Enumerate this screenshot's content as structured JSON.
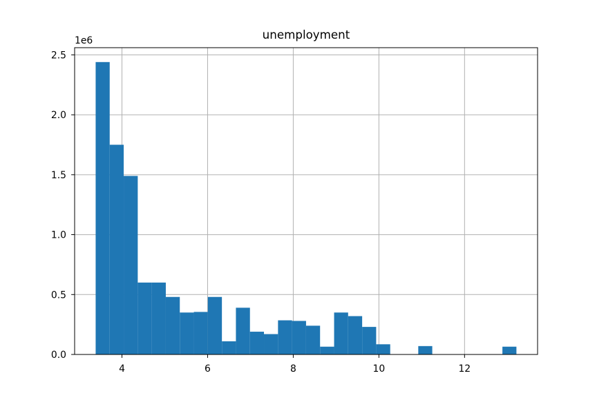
{
  "chart_data": {
    "type": "bar",
    "title": "unemployment",
    "xlabel": "",
    "ylabel": "",
    "offset_label": "1e6",
    "grid": true,
    "bar_color": "#1f77b4",
    "xlim": [
      2.895,
      13.705
    ],
    "ylim": [
      0,
      2.56
    ],
    "x_ticks": [
      4,
      6,
      8,
      10,
      12
    ],
    "x_tick_labels": [
      "4",
      "6",
      "8",
      "10",
      "12"
    ],
    "y_ticks": [
      0,
      0.5,
      1.0,
      1.5,
      2.0,
      2.5
    ],
    "y_tick_labels": [
      "0.0",
      "0.5",
      "1.0",
      "1.5",
      "2.0",
      "2.5"
    ],
    "bins": [
      {
        "x0": 3.386,
        "x1": 3.714,
        "value": 2.44
      },
      {
        "x0": 3.714,
        "x1": 4.041,
        "value": 1.75
      },
      {
        "x0": 4.041,
        "x1": 4.369,
        "value": 1.49
      },
      {
        "x0": 4.369,
        "x1": 4.696,
        "value": 0.6
      },
      {
        "x0": 4.696,
        "x1": 5.024,
        "value": 0.6
      },
      {
        "x0": 5.024,
        "x1": 5.351,
        "value": 0.48
      },
      {
        "x0": 5.351,
        "x1": 5.679,
        "value": 0.35
      },
      {
        "x0": 5.679,
        "x1": 6.006,
        "value": 0.355
      },
      {
        "x0": 6.006,
        "x1": 6.334,
        "value": 0.48
      },
      {
        "x0": 6.334,
        "x1": 6.661,
        "value": 0.11
      },
      {
        "x0": 6.661,
        "x1": 6.989,
        "value": 0.39
      },
      {
        "x0": 6.989,
        "x1": 7.316,
        "value": 0.19
      },
      {
        "x0": 7.316,
        "x1": 7.644,
        "value": 0.17
      },
      {
        "x0": 7.644,
        "x1": 7.971,
        "value": 0.285
      },
      {
        "x0": 7.971,
        "x1": 8.299,
        "value": 0.28
      },
      {
        "x0": 8.299,
        "x1": 8.626,
        "value": 0.24
      },
      {
        "x0": 8.626,
        "x1": 8.954,
        "value": 0.065
      },
      {
        "x0": 8.954,
        "x1": 9.281,
        "value": 0.35
      },
      {
        "x0": 9.281,
        "x1": 9.609,
        "value": 0.32
      },
      {
        "x0": 9.609,
        "x1": 9.936,
        "value": 0.23
      },
      {
        "x0": 9.936,
        "x1": 10.264,
        "value": 0.085
      },
      {
        "x0": 10.264,
        "x1": 10.591,
        "value": 0
      },
      {
        "x0": 10.591,
        "x1": 10.919,
        "value": 0
      },
      {
        "x0": 10.919,
        "x1": 11.246,
        "value": 0.07
      },
      {
        "x0": 11.246,
        "x1": 11.574,
        "value": 0
      },
      {
        "x0": 11.574,
        "x1": 11.901,
        "value": 0
      },
      {
        "x0": 11.901,
        "x1": 12.229,
        "value": 0
      },
      {
        "x0": 12.229,
        "x1": 12.556,
        "value": 0
      },
      {
        "x0": 12.556,
        "x1": 12.884,
        "value": 0
      },
      {
        "x0": 12.884,
        "x1": 13.211,
        "value": 0.065
      }
    ]
  }
}
